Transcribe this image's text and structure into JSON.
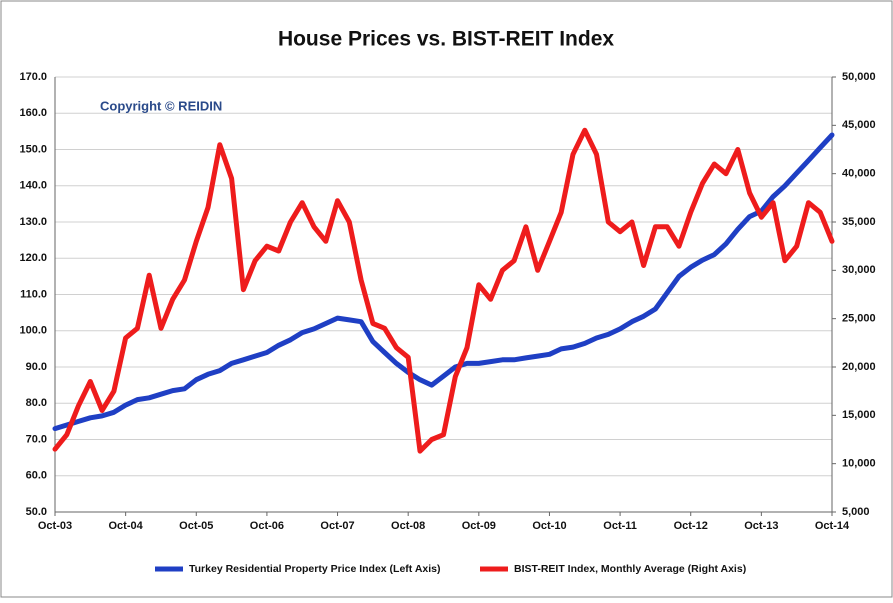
{
  "chart_data": {
    "type": "line",
    "title": "House Prices vs. BIST-REIT Index",
    "annotation": "Copyright © REIDIN",
    "categories": [
      "Oct-03",
      null,
      null,
      null,
      null,
      null,
      "Oct-04",
      null,
      null,
      null,
      null,
      null,
      "Oct-05",
      null,
      null,
      null,
      null,
      null,
      "Oct-06",
      null,
      null,
      null,
      null,
      null,
      "Oct-07",
      null,
      null,
      null,
      null,
      null,
      "Oct-08",
      null,
      null,
      null,
      null,
      null,
      "Oct-09",
      null,
      null,
      null,
      null,
      null,
      "Oct-10",
      null,
      null,
      null,
      null,
      null,
      "Oct-11",
      null,
      null,
      null,
      null,
      null,
      "Oct-12",
      null,
      null,
      null,
      null,
      null,
      "Oct-13",
      null,
      null,
      null,
      null,
      null,
      "Oct-14"
    ],
    "series": [
      {
        "name": "Turkey Residential Property Price Index (Left Axis)",
        "color": "#1f3fc4",
        "axis": "y",
        "values": [
          73,
          74,
          75,
          76,
          76.5,
          77.5,
          79.5,
          81,
          81.5,
          82.5,
          83.5,
          84,
          86.5,
          88,
          89,
          91,
          92,
          93,
          94,
          96,
          97.5,
          99.5,
          100.5,
          102,
          103.5,
          103,
          102.5,
          97,
          94,
          91,
          88.5,
          86.5,
          85,
          87.5,
          90,
          91,
          91,
          91.5,
          92,
          92,
          92.5,
          93,
          93.5,
          95,
          95.5,
          96.5,
          98,
          99,
          100.5,
          102.5,
          104,
          106,
          110.5,
          115,
          117.5,
          119.5,
          121,
          124,
          128,
          131.5,
          133,
          137,
          140,
          143.5,
          147,
          150.5,
          154
        ]
      },
      {
        "name": "BIST-REIT Index, Monthly Average (Right Axis)",
        "color": "#ee1c1c",
        "axis": "y2",
        "values": [
          11500,
          13000,
          16000,
          18500,
          15500,
          17500,
          23000,
          24000,
          29500,
          24000,
          27000,
          29000,
          33000,
          36500,
          43000,
          39500,
          28000,
          31000,
          32500,
          32000,
          35000,
          37000,
          34500,
          33000,
          37200,
          35000,
          29000,
          24500,
          24000,
          22000,
          21000,
          11300,
          12500,
          13000,
          19000,
          22000,
          28500,
          27000,
          30000,
          31000,
          34500,
          30000,
          33000,
          36000,
          42000,
          44500,
          42000,
          35000,
          34000,
          35000,
          30500,
          34500,
          34500,
          32500,
          36000,
          39000,
          41000,
          40000,
          42500,
          38000,
          35500,
          37000,
          31000,
          32500,
          37000,
          36000,
          33000
        ]
      }
    ],
    "ylim": [
      50,
      170
    ],
    "yticks": [
      {
        "value": 50,
        "label": "50.0"
      },
      {
        "value": 60,
        "label": "60.0"
      },
      {
        "value": 70,
        "label": "70.0"
      },
      {
        "value": 80,
        "label": "80.0"
      },
      {
        "value": 90,
        "label": "90.0"
      },
      {
        "value": 100,
        "label": "100.0"
      },
      {
        "value": 110,
        "label": "110.0"
      },
      {
        "value": 120,
        "label": "120.0"
      },
      {
        "value": 130,
        "label": "130.0"
      },
      {
        "value": 140,
        "label": "140.0"
      },
      {
        "value": 150,
        "label": "150.0"
      },
      {
        "value": 160,
        "label": "160.0"
      },
      {
        "value": 170,
        "label": "170.0"
      }
    ],
    "y2lim": [
      5000,
      50000
    ],
    "y2ticks": [
      {
        "value": 5000,
        "label": "5,000"
      },
      {
        "value": 10000,
        "label": "10,000"
      },
      {
        "value": 15000,
        "label": "15,000"
      },
      {
        "value": 20000,
        "label": "20,000"
      },
      {
        "value": 25000,
        "label": "25,000"
      },
      {
        "value": 30000,
        "label": "30,000"
      },
      {
        "value": 35000,
        "label": "35,000"
      },
      {
        "value": 40000,
        "label": "40,000"
      },
      {
        "value": 45000,
        "label": "45,000"
      },
      {
        "value": 50000,
        "label": "50,000"
      }
    ],
    "grid": true,
    "legend": "bottom"
  }
}
